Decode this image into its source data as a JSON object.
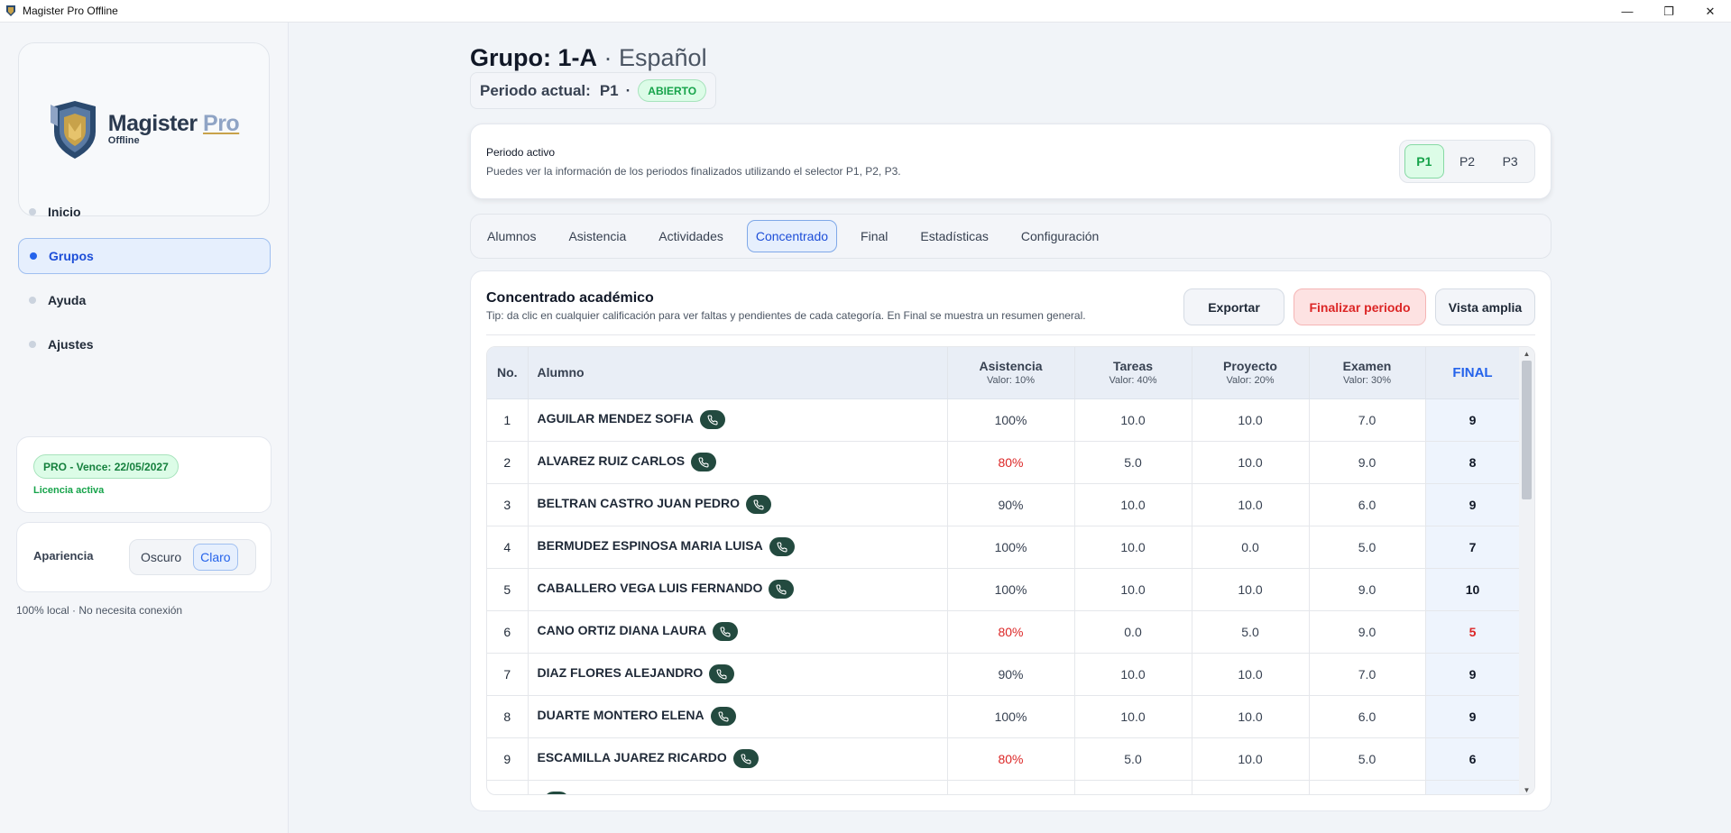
{
  "window": {
    "title": "Magister Pro Offline",
    "controls": {
      "minimize": "—",
      "restore": "❐",
      "close": "✕"
    }
  },
  "brand": {
    "name": "Magister",
    "name_accent": "Pro",
    "subtitle": "Offline",
    "colors": {
      "shield_gold": "#c8a24a",
      "shield_blue": "#2b4a6f",
      "accent": "#2563eb"
    }
  },
  "sidebar": {
    "items": [
      {
        "label": "Inicio",
        "active": false
      },
      {
        "label": "Grupos",
        "active": true
      },
      {
        "label": "Ayuda",
        "active": false
      },
      {
        "label": "Ajustes",
        "active": false
      }
    ],
    "license": {
      "badge": "PRO - Vence: 22/05/2027",
      "status": "Licencia activa"
    },
    "appearance": {
      "label": "Apariencia",
      "options": [
        "Oscuro",
        "Claro"
      ],
      "selected": "Claro"
    },
    "offline_note": "100% local · No necesita conexión"
  },
  "header": {
    "group_label": "Grupo: 1-A",
    "subject": " · Español",
    "period_label": "Periodo actual:",
    "period_value": "P1",
    "period_sep": "·",
    "period_status": "ABIERTO"
  },
  "active_period": {
    "title": "Periodo activo",
    "description": "Puedes ver la información de los periodos finalizados utilizando el selector P1, P2, P3.",
    "options": [
      "P1",
      "P2",
      "P3"
    ],
    "selected": "P1"
  },
  "tabs": [
    {
      "label": "Alumnos",
      "active": false
    },
    {
      "label": "Asistencia",
      "active": false
    },
    {
      "label": "Actividades",
      "active": false
    },
    {
      "label": "Concentrado",
      "active": true
    },
    {
      "label": "Final",
      "active": false
    },
    {
      "label": "Estadísticas",
      "active": false
    },
    {
      "label": "Configuración",
      "active": false
    }
  ],
  "concentrado": {
    "title": "Concentrado académico",
    "tip": "Tip: da clic en cualquier calificación para ver faltas y pendientes de cada categoría. En Final se muestra un resumen general.",
    "buttons": {
      "export": "Exportar",
      "finalize": "Finalizar periodo",
      "wide": "Vista amplia"
    },
    "columns": {
      "no": "No.",
      "student": "Alumno",
      "attendance": {
        "label": "Asistencia",
        "sub": "Valor: 10%"
      },
      "tasks": {
        "label": "Tareas",
        "sub": "Valor: 40%"
      },
      "project": {
        "label": "Proyecto",
        "sub": "Valor: 20%"
      },
      "exam": {
        "label": "Examen",
        "sub": "Valor: 30%"
      },
      "final": "FINAL"
    },
    "rows": [
      {
        "no": "1",
        "name": "AGUILAR MENDEZ SOFIA",
        "attendance": "100%",
        "tasks": "10.0",
        "project": "10.0",
        "exam": "7.0",
        "final": "9",
        "att_low": false,
        "final_low": false
      },
      {
        "no": "2",
        "name": "ALVAREZ RUIZ CARLOS",
        "attendance": "80%",
        "tasks": "5.0",
        "project": "10.0",
        "exam": "9.0",
        "final": "8",
        "att_low": true,
        "final_low": false
      },
      {
        "no": "3",
        "name": "BELTRAN CASTRO JUAN PEDRO",
        "attendance": "90%",
        "tasks": "10.0",
        "project": "10.0",
        "exam": "6.0",
        "final": "9",
        "att_low": false,
        "final_low": false
      },
      {
        "no": "4",
        "name": "BERMUDEZ ESPINOSA MARIA LUISA",
        "attendance": "100%",
        "tasks": "10.0",
        "project": "0.0",
        "exam": "5.0",
        "final": "7",
        "att_low": false,
        "final_low": false
      },
      {
        "no": "5",
        "name": "CABALLERO VEGA LUIS FERNANDO",
        "attendance": "100%",
        "tasks": "10.0",
        "project": "10.0",
        "exam": "9.0",
        "final": "10",
        "att_low": false,
        "final_low": false
      },
      {
        "no": "6",
        "name": "CANO ORTIZ DIANA LAURA",
        "attendance": "80%",
        "tasks": "0.0",
        "project": "5.0",
        "exam": "9.0",
        "final": "5",
        "att_low": true,
        "final_low": true
      },
      {
        "no": "7",
        "name": "DIAZ FLORES ALEJANDRO",
        "attendance": "90%",
        "tasks": "10.0",
        "project": "10.0",
        "exam": "7.0",
        "final": "9",
        "att_low": false,
        "final_low": false
      },
      {
        "no": "8",
        "name": "DUARTE MONTERO ELENA",
        "attendance": "100%",
        "tasks": "10.0",
        "project": "10.0",
        "exam": "6.0",
        "final": "9",
        "att_low": false,
        "final_low": false
      },
      {
        "no": "9",
        "name": "ESCAMILLA JUAREZ RICARDO",
        "attendance": "80%",
        "tasks": "5.0",
        "project": "10.0",
        "exam": "5.0",
        "final": "6",
        "att_low": true,
        "final_low": false
      },
      {
        "no": "",
        "name": "",
        "attendance": "",
        "tasks": "",
        "project": "",
        "exam": "",
        "final": "",
        "att_low": false,
        "final_low": false
      }
    ],
    "scroll": {
      "up": "▲",
      "down": "▼"
    }
  }
}
